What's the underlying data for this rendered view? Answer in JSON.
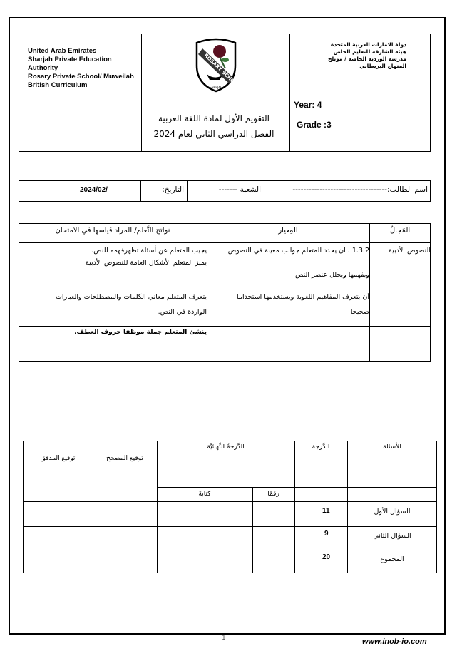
{
  "header": {
    "english_lines": [
      "United Arab Emirates",
      "Sharjah Private Education",
      "Authority",
      "Rosary Private School/ Muweilah",
      "British Curriculum"
    ],
    "arabic_lines": [
      "دولة الامارات العربية  المتحدة",
      "هيئة الشارقة للتعليم الخاص",
      "مدرسة الوردية الخاصة / مويلح",
      "المنهاج البريطاني"
    ],
    "logo_text": "ROSARY SCHOOL",
    "logo_subtext": "SHARJAH",
    "title_line1": "التقويم الأول لمادة اللغة العربية",
    "title_line2": "الفصل الدراسي الثاني لعام 2024",
    "year": "Year: 4",
    "grade": "Grade :3"
  },
  "student": {
    "name_label": "اسم الطالب:-----------------------------------",
    "section_label": "الشعبة -------",
    "date_label": "التاريخ:",
    "date_value": "2024/02/"
  },
  "criteria": {
    "headers": [
      "المَجالُ",
      "المِعيار",
      "نواتج التَّعلم/ المراد قياسها في الامتحان"
    ],
    "rows": [
      {
        "domain": "النصوص الأدبية",
        "standard": [
          "1.3.2 .  أن  يحدد المتعلم جوانب معينة في النصوص",
          "ويفهمها ويحلل عنصر النص.."
        ],
        "outcomes": [
          "يجيب المتعلم عن أسئلة تظهرفهمه للنص.",
          "يميز المتعلم الأشكال العامة للنصوص الأدبية"
        ]
      },
      {
        "domain": "",
        "standard": [
          "أن يتعرف المفاهيم اللغوية ويستخدمها استخداما",
          "صحيحا"
        ],
        "outcomes": [
          "يتعرف المتعلم معاني الكلمات والمصطلحات والعبارات",
          "الواردة في النص."
        ]
      },
      {
        "domain": "",
        "standard": [],
        "outcomes": [
          "ينشئ المتعلم جملة  موظفا حروف العطف."
        ]
      }
    ]
  },
  "grades": {
    "headers": {
      "questions": "الأسئلة",
      "grade": "الدَّرجة",
      "final": "الدَّرجةُ النِّهائيَّة",
      "digits": "رقمًا",
      "words": "كتابةً",
      "marker_sig": "توقيع المصحح",
      "checker_sig": "توقيع  المدقق"
    },
    "rows": [
      {
        "question": "السؤال الأول",
        "grade": "11"
      },
      {
        "question": "السؤال الثاني",
        "grade": "9"
      },
      {
        "question": "المجموع",
        "grade": "20"
      }
    ]
  },
  "footer": {
    "page_number": "1",
    "watermark": "www.inob-io.com"
  }
}
